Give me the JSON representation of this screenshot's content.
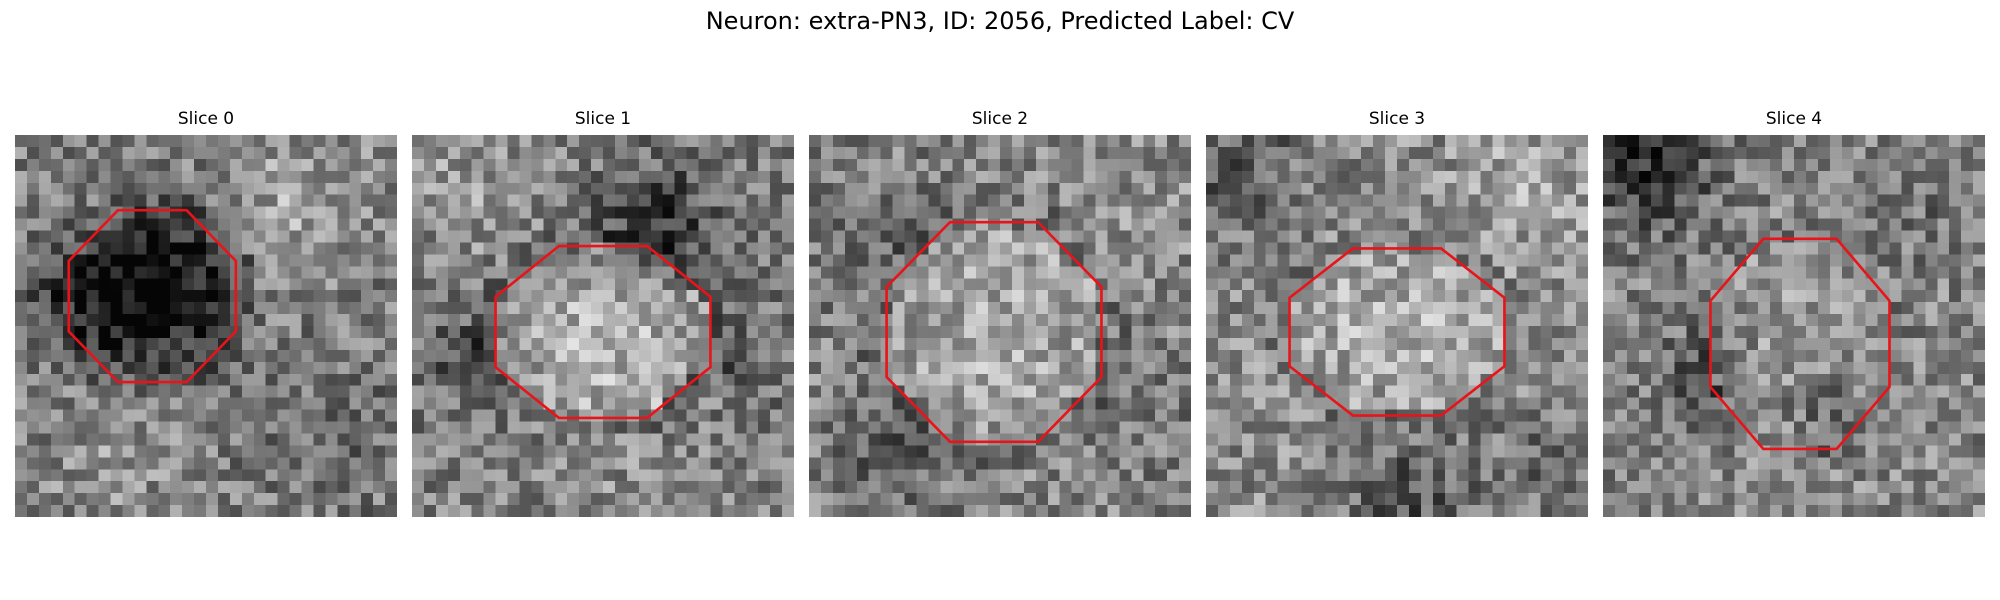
{
  "figure": {
    "title": "Neuron: extra-PN3, ID: 2056, Predicted Label: CV"
  },
  "panels": [
    {
      "title": "Slice 0"
    },
    {
      "title": "Slice 1"
    },
    {
      "title": "Slice 2"
    },
    {
      "title": "Slice 3"
    },
    {
      "title": "Slice 4"
    }
  ],
  "image": {
    "colormap": "gray",
    "grid": [
      32,
      32
    ]
  },
  "overlay": {
    "shape": "octagon",
    "color": "#e8141a"
  }
}
